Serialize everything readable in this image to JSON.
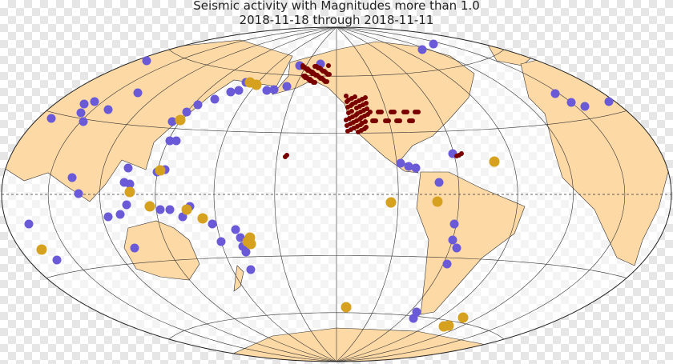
{
  "map": {
    "title": "Seismic activity with Magnitudes more than 1.0",
    "subtitle": "2018-11-18 through 2018-11-11"
  }
}
